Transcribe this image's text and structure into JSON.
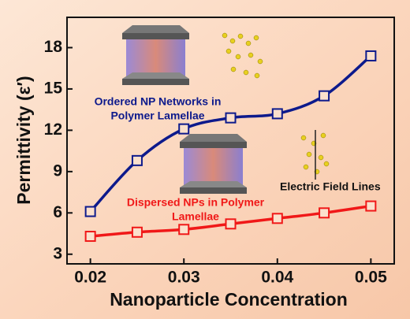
{
  "chart_data": {
    "type": "line",
    "x": [
      0.02,
      0.025,
      0.03,
      0.035,
      0.04,
      0.045,
      0.05
    ],
    "xlim": [
      0.0175,
      0.0525
    ],
    "xticks": [
      0.02,
      0.03,
      0.04,
      0.05
    ],
    "ylim": [
      2.3,
      20.2
    ],
    "yticks": [
      3,
      6,
      9,
      12,
      15,
      18
    ],
    "xlabel": "Nanoparticle Concentration",
    "ylabel": "Permittivity (ε′)",
    "series": [
      {
        "color": "#0d1a8c",
        "values": [
          6.1,
          9.8,
          12.1,
          12.9,
          13.2,
          14.5,
          17.4
        ]
      },
      {
        "color": "#f01818",
        "values": [
          4.3,
          4.6,
          4.8,
          5.2,
          5.6,
          6.0,
          6.5
        ]
      }
    ],
    "annotations": [
      {
        "lines": [
          "Ordered NP Networks in",
          "Polymer Lamellae"
        ],
        "color": "#0d1a8c"
      },
      {
        "lines": [
          "Dispersed NPs in Polymer",
          "Lamellae"
        ],
        "color": "#f01818"
      },
      {
        "lines": [
          "Electric Field Lines"
        ],
        "color": "#111111"
      }
    ]
  }
}
